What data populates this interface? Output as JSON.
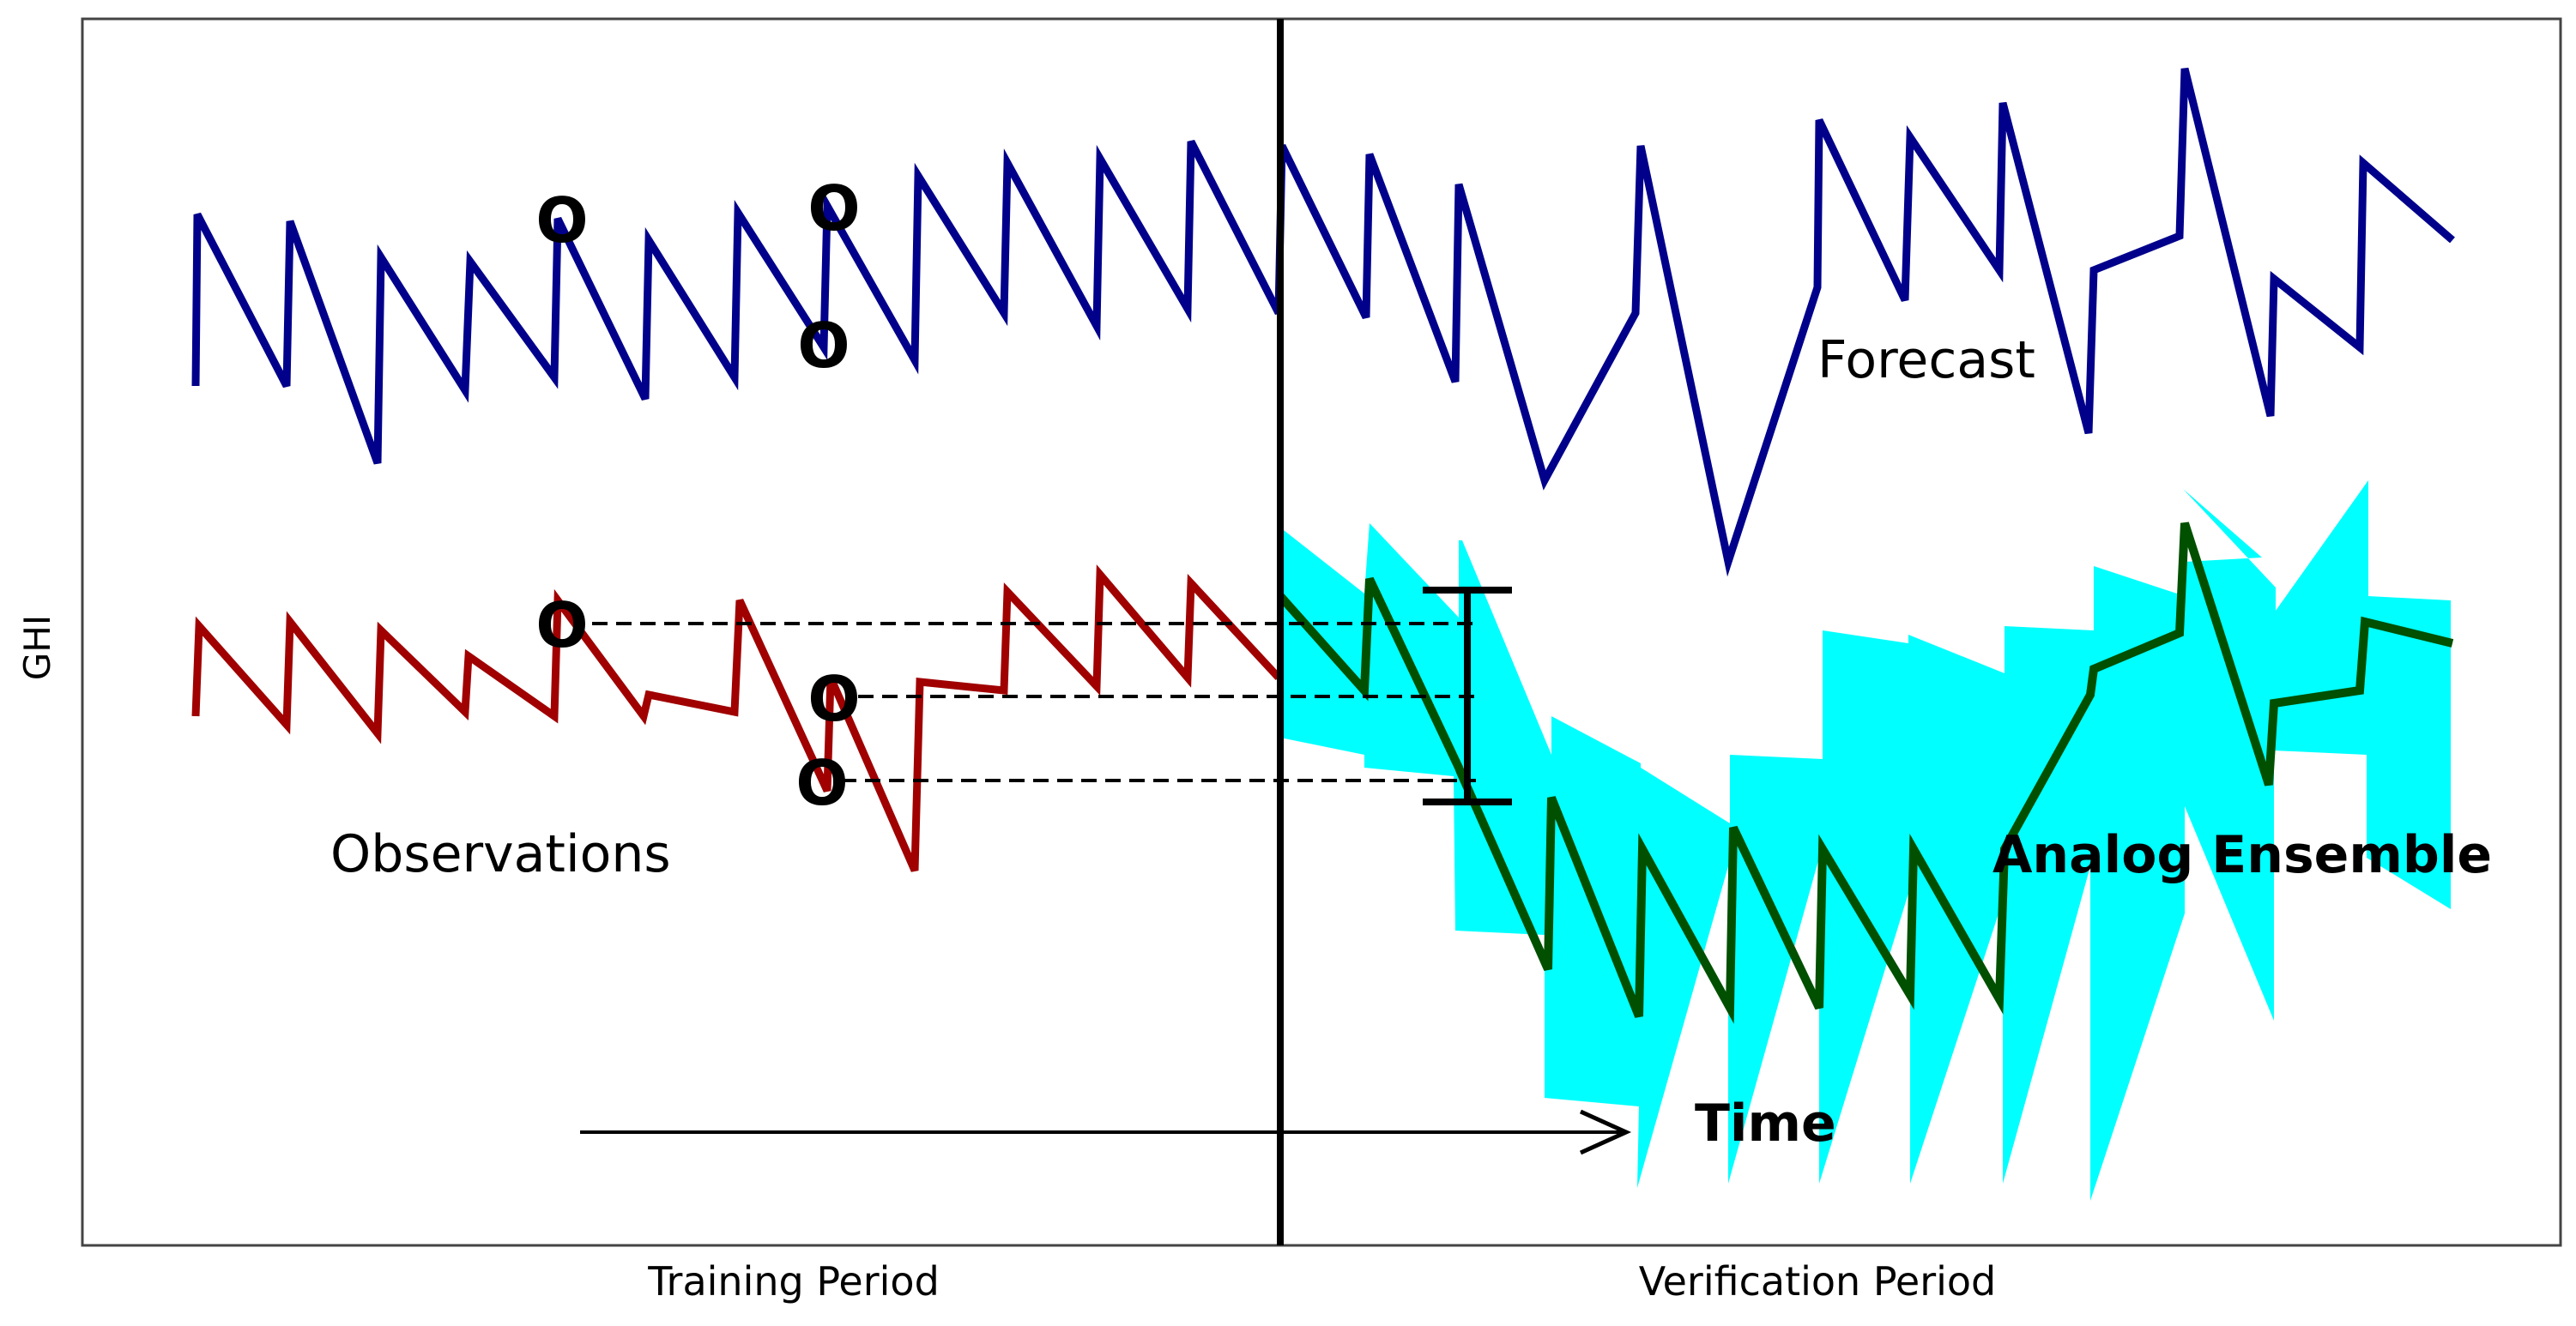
{
  "figure": {
    "y_axis_label": "GHI",
    "x_axis_labels": [
      "Training Period",
      "Verification Period"
    ],
    "labels": {
      "forecast": "Forecast",
      "observations": "Observations",
      "analog_ensemble": "Analog Ensemble",
      "time": "Time"
    },
    "colors": {
      "forecast": "#00008b",
      "observations": "#a00000",
      "ensemble_mean": "#005000",
      "ensemble_spread": "#00ffff",
      "axes": "#000000",
      "analog_lines": "#000000"
    },
    "analog_marker_glyph": "O"
  }
}
